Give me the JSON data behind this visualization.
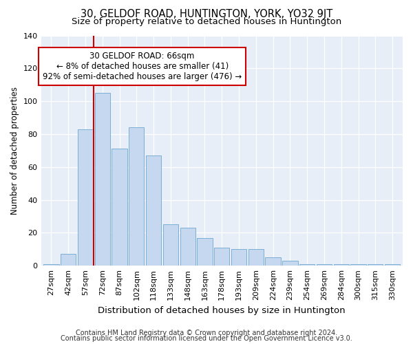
{
  "title": "30, GELDOF ROAD, HUNTINGTON, YORK, YO32 9JT",
  "subtitle": "Size of property relative to detached houses in Huntington",
  "xlabel": "Distribution of detached houses by size in Huntington",
  "ylabel": "Number of detached properties",
  "categories": [
    "27sqm",
    "42sqm",
    "57sqm",
    "72sqm",
    "87sqm",
    "102sqm",
    "118sqm",
    "133sqm",
    "148sqm",
    "163sqm",
    "178sqm",
    "193sqm",
    "209sqm",
    "224sqm",
    "239sqm",
    "254sqm",
    "269sqm",
    "284sqm",
    "300sqm",
    "315sqm",
    "330sqm"
  ],
  "values": [
    1,
    7,
    83,
    105,
    71,
    84,
    67,
    25,
    23,
    17,
    11,
    10,
    10,
    5,
    3,
    1,
    1,
    1,
    1,
    1,
    1
  ],
  "bar_color": "#c5d8ef",
  "bar_edgecolor": "#7aafd4",
  "vline_x": 2.5,
  "vline_color": "#cc0000",
  "annotation_text": "30 GELDOF ROAD: 66sqm\n← 8% of detached houses are smaller (41)\n92% of semi-detached houses are larger (476) →",
  "annotation_box_color": "#ffffff",
  "annotation_box_edgecolor": "#cc0000",
  "ylim": [
    0,
    140
  ],
  "yticks": [
    0,
    20,
    40,
    60,
    80,
    100,
    120,
    140
  ],
  "footnote1": "Contains HM Land Registry data © Crown copyright and database right 2024.",
  "footnote2": "Contains public sector information licensed under the Open Government Licence v3.0.",
  "bg_color": "#ffffff",
  "plot_bg_color": "#e8eef8",
  "grid_color": "#ffffff",
  "title_fontsize": 10.5,
  "subtitle_fontsize": 9.5,
  "xlabel_fontsize": 9.5,
  "ylabel_fontsize": 8.5,
  "tick_fontsize": 8,
  "annotation_fontsize": 8.5,
  "footnote_fontsize": 7
}
